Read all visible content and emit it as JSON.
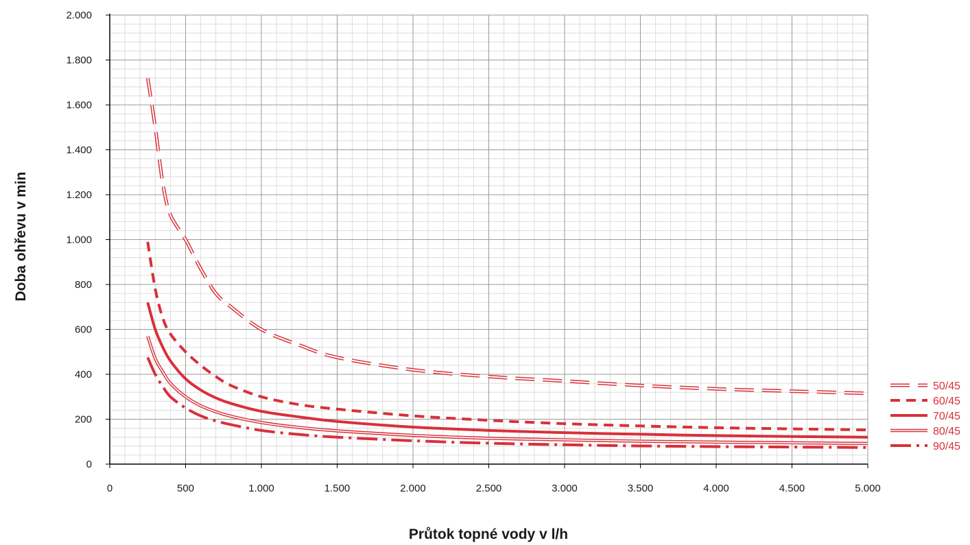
{
  "chart_data": {
    "type": "line",
    "title": "",
    "xlabel": "Průtok topné vody v l/h",
    "ylabel": "Doba ohřevu v min",
    "xlim": [
      0,
      5000
    ],
    "ylim": [
      0,
      2000
    ],
    "x_ticks": [
      0,
      500,
      1000,
      1500,
      2000,
      2500,
      3000,
      3500,
      4000,
      4500,
      5000
    ],
    "x_tick_labels": [
      "0",
      "500",
      "1.000",
      "1.500",
      "2.000",
      "2.500",
      "3.000",
      "3.500",
      "4.000",
      "4.500",
      "5.000"
    ],
    "y_ticks": [
      0,
      200,
      400,
      600,
      800,
      1000,
      1200,
      1400,
      1600,
      1800,
      2000
    ],
    "y_tick_labels": [
      "0",
      "200",
      "400",
      "600",
      "800",
      "1.000",
      "1.200",
      "1.400",
      "1.600",
      "1.800",
      "2.000"
    ],
    "grid": true,
    "minor_grid": true,
    "legend_position": "right",
    "line_color": "#d9303a",
    "x": [
      250,
      300,
      350,
      400,
      500,
      600,
      700,
      800,
      1000,
      1250,
      1500,
      2000,
      2500,
      3000,
      3500,
      4000,
      4500,
      5000
    ],
    "series": [
      {
        "name": "50/45",
        "style": "double-dashed",
        "values": [
          1720,
          1500,
          1250,
          1110,
          1000,
          870,
          760,
          700,
          600,
          530,
          475,
          420,
          390,
          370,
          350,
          335,
          325,
          315
        ]
      },
      {
        "name": "60/45",
        "style": "dashed",
        "values": [
          990,
          780,
          650,
          580,
          500,
          440,
          390,
          350,
          300,
          265,
          245,
          215,
          195,
          180,
          170,
          162,
          157,
          152
        ]
      },
      {
        "name": "70/45",
        "style": "solid",
        "values": [
          720,
          600,
          520,
          460,
          380,
          330,
          295,
          270,
          235,
          210,
          190,
          165,
          150,
          140,
          133,
          127,
          123,
          120
        ]
      },
      {
        "name": "80/45",
        "style": "double-solid",
        "values": [
          570,
          470,
          410,
          360,
          300,
          260,
          233,
          213,
          185,
          163,
          148,
          128,
          115,
          108,
          102,
          98,
          95,
          92
        ]
      },
      {
        "name": "90/45",
        "style": "dash-dot",
        "values": [
          475,
          400,
          345,
          300,
          250,
          215,
          192,
          176,
          150,
          132,
          120,
          104,
          93,
          86,
          81,
          78,
          76,
          74
        ]
      }
    ]
  }
}
